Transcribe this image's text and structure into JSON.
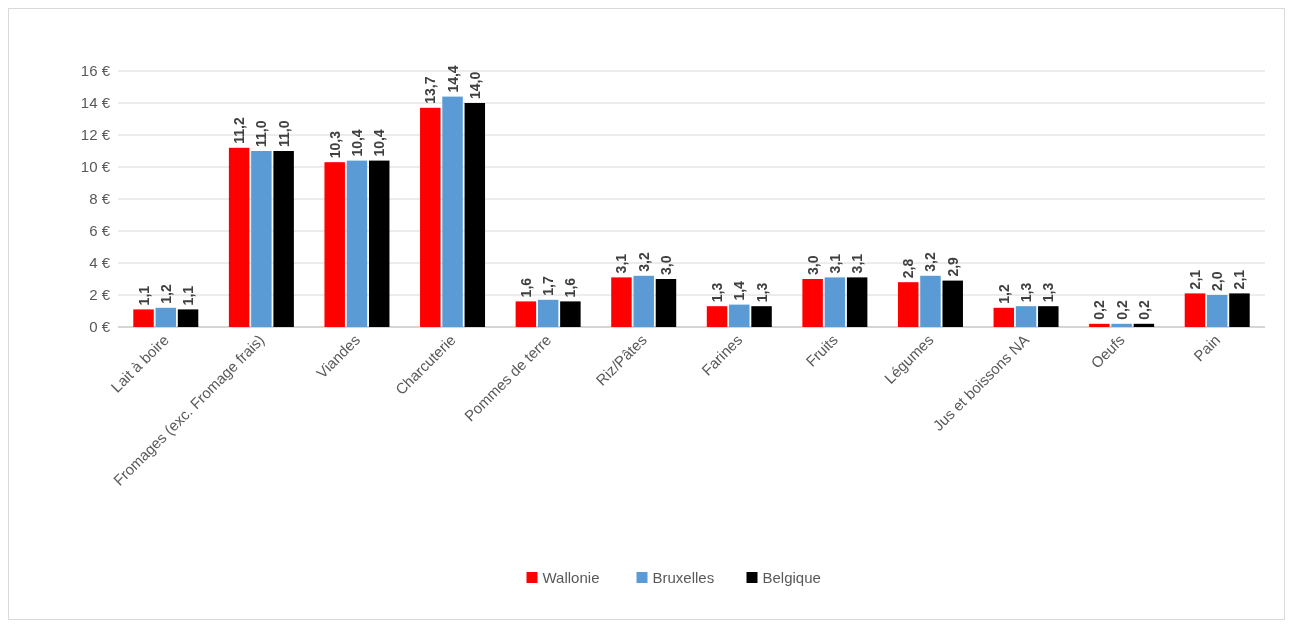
{
  "chart_data": {
    "type": "bar",
    "categories": [
      "Lait à boire",
      "Fromages (exc. Fromage frais)",
      "Viandes",
      "Charcuterie",
      "Pommes de terre",
      "Riz/Pâtes",
      "Farines",
      "Fruits",
      "Légumes",
      "Jus et boissons NA",
      "Oeufs",
      "Pain"
    ],
    "series": [
      {
        "name": "Wallonie",
        "color": "#ff0000",
        "values": [
          1.1,
          11.2,
          10.3,
          13.7,
          1.6,
          3.1,
          1.3,
          3.0,
          2.8,
          1.2,
          0.2,
          2.1
        ],
        "value_labels": [
          "1,1",
          "11,2",
          "10,3",
          "13,7",
          "1,6",
          "3,1",
          "1,3",
          "3,0",
          "2,8",
          "1,2",
          "0,2",
          "2,1"
        ]
      },
      {
        "name": "Bruxelles",
        "color": "#5b9bd5",
        "values": [
          1.2,
          11.0,
          10.4,
          14.4,
          1.7,
          3.2,
          1.4,
          3.1,
          3.2,
          1.3,
          0.2,
          2.0
        ],
        "value_labels": [
          "1,2",
          "11,0",
          "10,4",
          "14,4",
          "1,7",
          "3,2",
          "1,4",
          "3,1",
          "3,2",
          "1,3",
          "0,2",
          "2,0"
        ]
      },
      {
        "name": "Belgique",
        "color": "#000000",
        "values": [
          1.1,
          11.0,
          10.4,
          14.0,
          1.6,
          3.0,
          1.3,
          3.1,
          2.9,
          1.3,
          0.2,
          2.1
        ],
        "value_labels": [
          "1,1",
          "11,0",
          "10,4",
          "14,0",
          "1,6",
          "3,0",
          "1,3",
          "3,1",
          "2,9",
          "1,3",
          "0,2",
          "2,1"
        ]
      }
    ],
    "ylim": [
      0,
      16
    ],
    "yticks": [
      {
        "value": 0,
        "label": "0 €"
      },
      {
        "value": 2,
        "label": "2 €"
      },
      {
        "value": 4,
        "label": "4 €"
      },
      {
        "value": 6,
        "label": "6 €"
      },
      {
        "value": 8,
        "label": "8 €"
      },
      {
        "value": 10,
        "label": "10 €"
      },
      {
        "value": 12,
        "label": "12 €"
      },
      {
        "value": 14,
        "label": "14 €"
      },
      {
        "value": 16,
        "label": "16 €"
      }
    ],
    "grid": "y",
    "legend": "bottom"
  }
}
